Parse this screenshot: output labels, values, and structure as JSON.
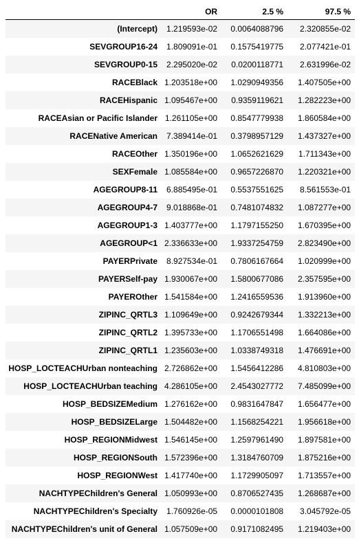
{
  "table": {
    "columns": [
      "",
      "OR",
      "2.5 %",
      "97.5 %"
    ],
    "rows": [
      {
        "label": "(Intercept)",
        "or": "1.219593e-02",
        "lo": "0.0064088796",
        "hi": "2.320855e-02"
      },
      {
        "label": "SEVGROUP16-24",
        "or": "1.809091e-01",
        "lo": "0.1575419775",
        "hi": "2.077421e-01"
      },
      {
        "label": "SEVGROUP0-15",
        "or": "2.295020e-02",
        "lo": "0.0200118771",
        "hi": "2.631996e-02"
      },
      {
        "label": "RACEBlack",
        "or": "1.203518e+00",
        "lo": "1.0290949356",
        "hi": "1.407505e+00"
      },
      {
        "label": "RACEHispanic",
        "or": "1.095467e+00",
        "lo": "0.9359119621",
        "hi": "1.282223e+00"
      },
      {
        "label": "RACEAsian or Pacific Islander",
        "or": "1.261105e+00",
        "lo": "0.8547779938",
        "hi": "1.860584e+00"
      },
      {
        "label": "RACENative American",
        "or": "7.389414e-01",
        "lo": "0.3798957129",
        "hi": "1.437327e+00"
      },
      {
        "label": "RACEOther",
        "or": "1.350196e+00",
        "lo": "1.0652621629",
        "hi": "1.711343e+00"
      },
      {
        "label": "SEXFemale",
        "or": "1.085584e+00",
        "lo": "0.9657226870",
        "hi": "1.220321e+00"
      },
      {
        "label": "AGEGROUP8-11",
        "or": "6.885495e-01",
        "lo": "0.5537551625",
        "hi": "8.561553e-01"
      },
      {
        "label": "AGEGROUP4-7",
        "or": "9.018868e-01",
        "lo": "0.7481074832",
        "hi": "1.087277e+00"
      },
      {
        "label": "AGEGROUP1-3",
        "or": "1.403777e+00",
        "lo": "1.1797155250",
        "hi": "1.670395e+00"
      },
      {
        "label": "AGEGROUP<1",
        "or": "2.336633e+00",
        "lo": "1.9337254759",
        "hi": "2.823490e+00"
      },
      {
        "label": "PAYERPrivate",
        "or": "8.927534e-01",
        "lo": "0.7806167664",
        "hi": "1.020999e+00"
      },
      {
        "label": "PAYERSelf-pay",
        "or": "1.930067e+00",
        "lo": "1.5800677086",
        "hi": "2.357595e+00"
      },
      {
        "label": "PAYEROther",
        "or": "1.541584e+00",
        "lo": "1.2416559536",
        "hi": "1.913960e+00"
      },
      {
        "label": "ZIPINC_QRTL3",
        "or": "1.109649e+00",
        "lo": "0.9242679344",
        "hi": "1.332213e+00"
      },
      {
        "label": "ZIPINC_QRTL2",
        "or": "1.395733e+00",
        "lo": "1.1706551498",
        "hi": "1.664086e+00"
      },
      {
        "label": "ZIPINC_QRTL1",
        "or": "1.235603e+00",
        "lo": "1.0338749318",
        "hi": "1.476691e+00"
      },
      {
        "label": "HOSP_LOCTEACHUrban nonteaching",
        "or": "2.726862e+00",
        "lo": "1.5456412286",
        "hi": "4.810803e+00"
      },
      {
        "label": "HOSP_LOCTEACHUrban teaching",
        "or": "4.286105e+00",
        "lo": "2.4543027772",
        "hi": "7.485099e+00"
      },
      {
        "label": "HOSP_BEDSIZEMedium",
        "or": "1.276162e+00",
        "lo": "0.9831647847",
        "hi": "1.656477e+00"
      },
      {
        "label": "HOSP_BEDSIZELarge",
        "or": "1.504482e+00",
        "lo": "1.1568254221",
        "hi": "1.956618e+00"
      },
      {
        "label": "HOSP_REGIONMidwest",
        "or": "1.546145e+00",
        "lo": "1.2597961490",
        "hi": "1.897581e+00"
      },
      {
        "label": "HOSP_REGIONSouth",
        "or": "1.572396e+00",
        "lo": "1.3184760709",
        "hi": "1.875216e+00"
      },
      {
        "label": "HOSP_REGIONWest",
        "or": "1.417740e+00",
        "lo": "1.1729905097",
        "hi": "1.713557e+00"
      },
      {
        "label": "NACHTYPEChildren's General",
        "or": "1.050993e+00",
        "lo": "0.8706527435",
        "hi": "1.268687e+00"
      },
      {
        "label": "NACHTYPEChildren's Specialty",
        "or": "1.760926e-05",
        "lo": "0.0000101808",
        "hi": "3.045792e-05"
      },
      {
        "label": "NACHTYPEChildren's unit of General",
        "or": "1.057509e+00",
        "lo": "0.9171082495",
        "hi": "1.219403e+00"
      }
    ]
  }
}
